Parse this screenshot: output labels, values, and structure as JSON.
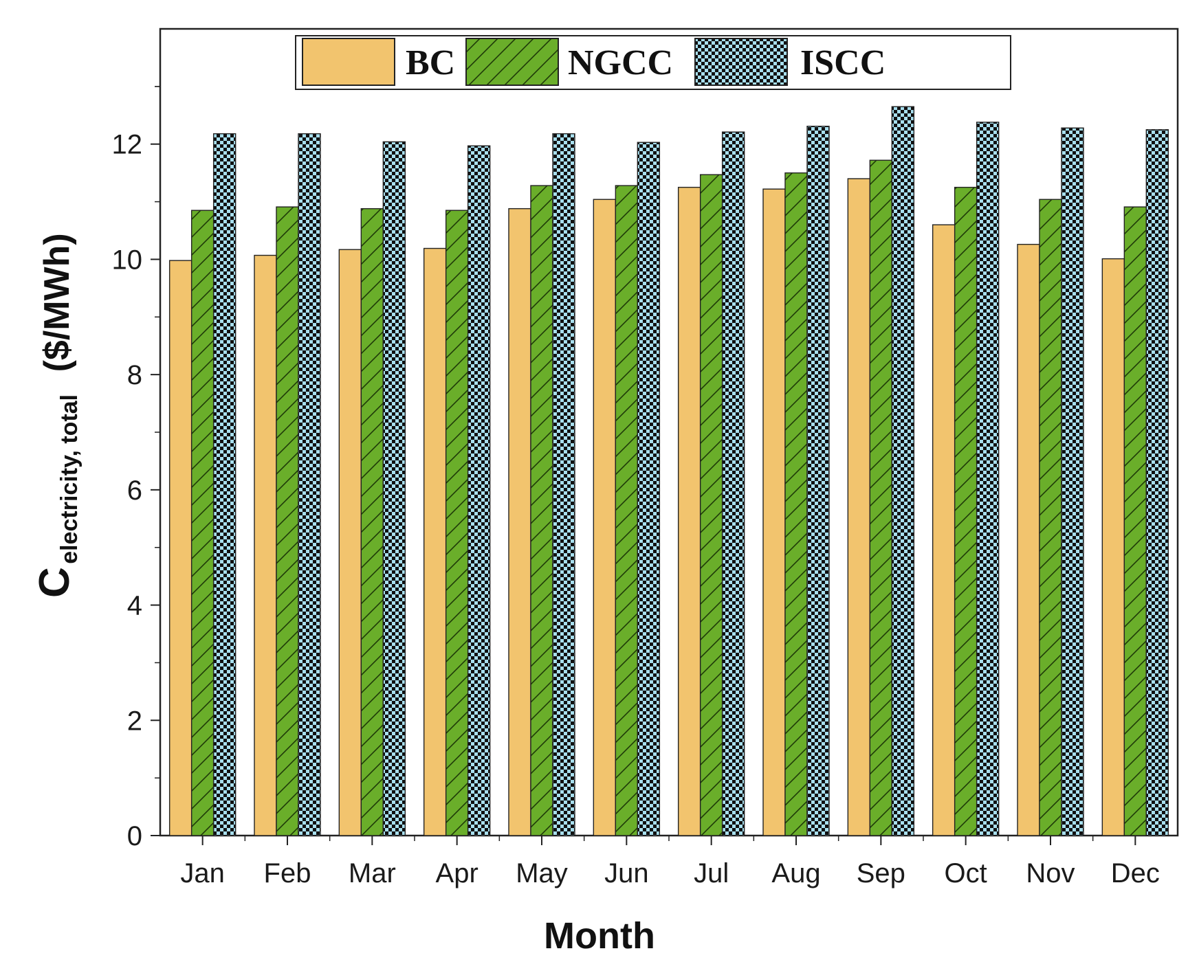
{
  "chart_data": {
    "type": "bar",
    "title": "",
    "xlabel": "Month",
    "ylabel": {
      "main": "C",
      "subscript": "electricity, total",
      "unit": "($/MWh)"
    },
    "ylim": [
      0,
      14
    ],
    "yticks": [
      "0",
      "2",
      "4",
      "6",
      "8",
      "10",
      "12"
    ],
    "grid": false,
    "legend_position": "top-center",
    "categories": [
      "Jan",
      "Feb",
      "Mar",
      "Apr",
      "May",
      "Jun",
      "Jul",
      "Aug",
      "Sep",
      "Oct",
      "Nov",
      "Dec"
    ],
    "series": [
      {
        "name": "BC",
        "color": "#F2C46E",
        "pattern": "solid",
        "values": [
          9.98,
          10.07,
          10.17,
          10.19,
          10.88,
          11.04,
          11.25,
          11.22,
          11.4,
          10.6,
          10.26,
          10.01
        ]
      },
      {
        "name": "NGCC",
        "color": "#6AAE2A",
        "pattern": "diagonal-hatch",
        "values": [
          10.85,
          10.91,
          10.88,
          10.85,
          11.28,
          11.28,
          11.47,
          11.5,
          11.72,
          11.25,
          11.04,
          10.91
        ]
      },
      {
        "name": "ISCC",
        "color": "#A8DFEF",
        "pattern": "checker",
        "values": [
          12.18,
          12.18,
          12.04,
          11.97,
          12.18,
          12.03,
          12.21,
          12.31,
          12.65,
          12.38,
          12.28,
          12.25
        ]
      }
    ]
  }
}
